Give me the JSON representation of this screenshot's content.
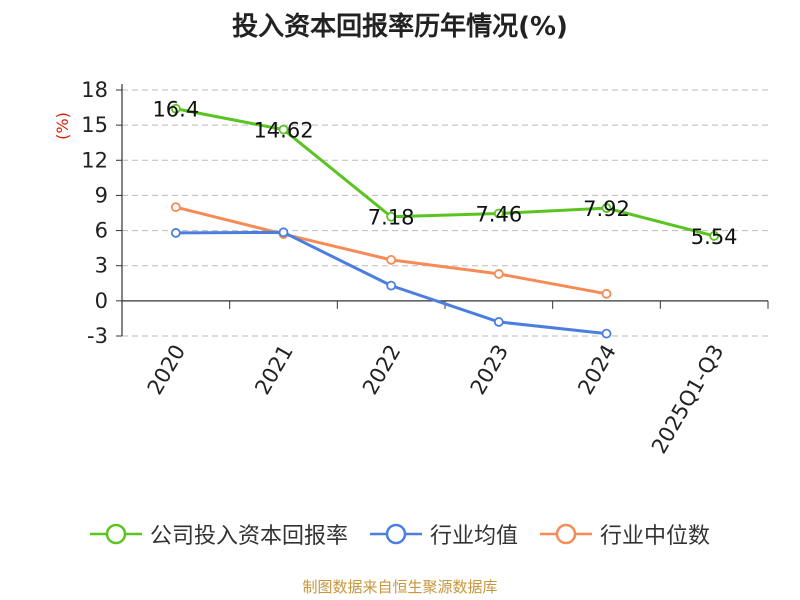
{
  "title": "投入资本回报率历年情况(%)",
  "source": "制图数据来自恒生聚源数据库",
  "chart_data": {
    "type": "line",
    "title": "投入资本回报率历年情况(%)",
    "ylabel": "(%)",
    "categories": [
      "2020",
      "2021",
      "2022",
      "2023",
      "2024",
      "2025Q1-Q3"
    ],
    "yticks": [
      "18",
      "15",
      "12",
      "9",
      "6",
      "3",
      "0",
      "-3"
    ],
    "ylim": [
      -3,
      18
    ],
    "grid": "horizontal dashed",
    "legend_position": "bottom",
    "series": [
      {
        "name": "公司投入资本回报率",
        "color": "#5ac421",
        "values": [
          16.4,
          14.62,
          7.18,
          7.46,
          7.92,
          5.54
        ],
        "labels": [
          "16.4",
          "14.62",
          "7.18",
          "7.46",
          "7.92",
          "5.54"
        ]
      },
      {
        "name": "行业均值",
        "color": "#4b7fdf",
        "values": [
          5.8,
          5.85,
          1.3,
          -1.8,
          -2.8,
          null
        ]
      },
      {
        "name": "行业中位数",
        "color": "#f68b56",
        "values": [
          8.0,
          5.7,
          3.5,
          2.3,
          0.6,
          null
        ]
      }
    ]
  }
}
